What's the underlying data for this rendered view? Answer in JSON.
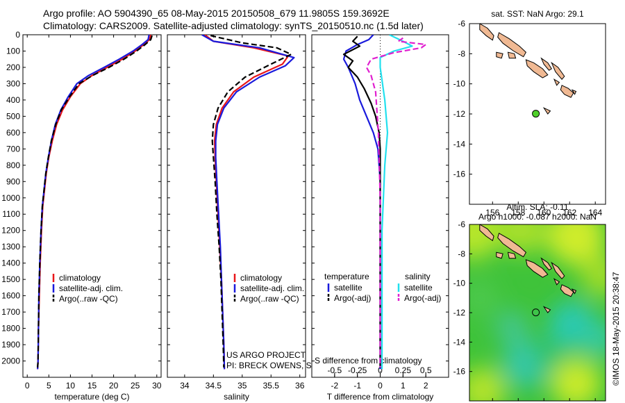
{
  "header": {
    "line1": "Argo profile: AO 5904390_65 08-May-2015 20150508_679 11.9805S 159.3692E",
    "line2": "Climatology: CARS2009. Satellite-adjusted climatology: synTS_20150510.nc (1.5d later)"
  },
  "stamp": "©IMOS 18-May-2015 20:38:47",
  "colors": {
    "climatology": "#e8161a",
    "satellite": "#1a1adc",
    "argo": "#000000",
    "sal_satellite": "#22e0ee",
    "sal_argo": "#e020d0",
    "float_marker": "#4fd02a"
  },
  "chart_data": [
    {
      "id": "temperature",
      "type": "line",
      "xlabel": "temperature (deg C)",
      "ylim": [
        2100,
        0
      ],
      "xlim": [
        -1,
        31
      ],
      "xticks": [
        0,
        5,
        10,
        15,
        20,
        25,
        30
      ],
      "yticks": [
        0,
        100,
        200,
        300,
        400,
        500,
        600,
        700,
        800,
        900,
        1000,
        1100,
        1200,
        1300,
        1400,
        1500,
        1600,
        1700,
        1800,
        1900,
        2000
      ],
      "legend": [
        "climatology",
        "satellite-adj. clim.",
        "Argo(..raw -QC)"
      ],
      "series": [
        {
          "name": "climatology",
          "color": "#e8161a",
          "points": [
            [
              28.6,
              0
            ],
            [
              28.3,
              30
            ],
            [
              27.0,
              60
            ],
            [
              25.0,
              100
            ],
            [
              22.0,
              150
            ],
            [
              18.5,
              200
            ],
            [
              15.0,
              250
            ],
            [
              12.3,
              300
            ],
            [
              10.0,
              380
            ],
            [
              8.2,
              460
            ],
            [
              6.8,
              550
            ],
            [
              5.8,
              650
            ],
            [
              5.0,
              750
            ],
            [
              4.4,
              850
            ],
            [
              4.0,
              950
            ],
            [
              3.6,
              1050
            ],
            [
              3.3,
              1200
            ],
            [
              3.0,
              1400
            ],
            [
              2.8,
              1600
            ],
            [
              2.6,
              1800
            ],
            [
              2.5,
              2000
            ],
            [
              2.4,
              2050
            ]
          ]
        },
        {
          "name": "satellite-adj. clim.",
          "color": "#1a1adc",
          "points": [
            [
              28.2,
              0
            ],
            [
              28.0,
              30
            ],
            [
              26.6,
              60
            ],
            [
              24.5,
              100
            ],
            [
              21.3,
              150
            ],
            [
              17.8,
              200
            ],
            [
              14.2,
              250
            ],
            [
              11.5,
              300
            ],
            [
              9.5,
              380
            ],
            [
              7.8,
              460
            ],
            [
              6.5,
              550
            ],
            [
              5.6,
              650
            ],
            [
              4.9,
              750
            ],
            [
              4.3,
              850
            ],
            [
              3.9,
              950
            ],
            [
              3.5,
              1050
            ],
            [
              3.2,
              1200
            ],
            [
              2.9,
              1400
            ],
            [
              2.7,
              1600
            ],
            [
              2.6,
              1800
            ],
            [
              2.5,
              2000
            ],
            [
              2.4,
              2050
            ]
          ]
        },
        {
          "name": "Argo(..raw -QC)",
          "color": "#000000",
          "dashed": true,
          "points": [
            [
              28.9,
              5
            ],
            [
              28.6,
              30
            ],
            [
              27.3,
              60
            ],
            [
              25.3,
              100
            ],
            [
              22.4,
              150
            ],
            [
              18.9,
              200
            ],
            [
              15.1,
              250
            ],
            [
              12.0,
              300
            ],
            [
              9.8,
              380
            ],
            [
              7.9,
              460
            ],
            [
              6.6,
              550
            ],
            [
              5.6,
              650
            ],
            [
              4.9,
              750
            ],
            [
              4.3,
              850
            ],
            [
              3.9,
              950
            ],
            [
              3.5,
              1050
            ],
            [
              3.2,
              1200
            ],
            [
              2.9,
              1400
            ],
            [
              2.7,
              1600
            ],
            [
              2.6,
              1800
            ],
            [
              2.5,
              2000
            ],
            [
              2.4,
              2040
            ]
          ]
        }
      ]
    },
    {
      "id": "salinity",
      "type": "line",
      "xlabel": "salinity",
      "ylim": [
        2100,
        0
      ],
      "xlim": [
        33.7,
        36.1
      ],
      "xticks": [
        34,
        34.5,
        35,
        35.5,
        36
      ],
      "xticklabels": [
        "34",
        "34.5",
        "35",
        "35.5",
        "36"
      ],
      "legend": [
        "climatology",
        "satellite-adj. clim.",
        "Argo(..raw -QC)"
      ],
      "annotations": [
        "US ARGO PROJECT",
        "PI: BRECK OWENS, STEVE JAYNE, P.E. ROBBINS"
      ],
      "series": [
        {
          "name": "climatology",
          "color": "#e8161a",
          "points": [
            [
              34.35,
              0
            ],
            [
              34.5,
              40
            ],
            [
              35.2,
              80
            ],
            [
              35.8,
              130
            ],
            [
              35.7,
              180
            ],
            [
              35.2,
              260
            ],
            [
              34.85,
              350
            ],
            [
              34.65,
              450
            ],
            [
              34.55,
              550
            ],
            [
              34.52,
              650
            ],
            [
              34.53,
              750
            ],
            [
              34.55,
              900
            ],
            [
              34.58,
              1100
            ],
            [
              34.61,
              1300
            ],
            [
              34.64,
              1500
            ],
            [
              34.66,
              1700
            ],
            [
              34.68,
              1900
            ],
            [
              34.69,
              2050
            ]
          ]
        },
        {
          "name": "satellite-adj. clim.",
          "color": "#1a1adc",
          "points": [
            [
              34.3,
              0
            ],
            [
              34.5,
              40
            ],
            [
              35.3,
              80
            ],
            [
              35.9,
              140
            ],
            [
              35.75,
              190
            ],
            [
              35.3,
              260
            ],
            [
              34.9,
              350
            ],
            [
              34.68,
              450
            ],
            [
              34.57,
              550
            ],
            [
              34.54,
              650
            ],
            [
              34.54,
              750
            ],
            [
              34.56,
              900
            ],
            [
              34.59,
              1100
            ],
            [
              34.62,
              1300
            ],
            [
              34.64,
              1500
            ],
            [
              34.66,
              1700
            ],
            [
              34.68,
              1900
            ],
            [
              34.69,
              2050
            ]
          ]
        },
        {
          "name": "Argo(..raw -QC)",
          "color": "#000000",
          "dashed": true,
          "points": [
            [
              34.45,
              5
            ],
            [
              35.0,
              50
            ],
            [
              35.6,
              80
            ],
            [
              35.85,
              120
            ],
            [
              35.5,
              180
            ],
            [
              35.05,
              260
            ],
            [
              34.75,
              350
            ],
            [
              34.58,
              450
            ],
            [
              34.5,
              550
            ],
            [
              34.48,
              650
            ],
            [
              34.5,
              750
            ],
            [
              34.53,
              900
            ],
            [
              34.56,
              1100
            ],
            [
              34.6,
              1300
            ],
            [
              34.63,
              1500
            ],
            [
              34.65,
              1700
            ],
            [
              34.67,
              1900
            ],
            [
              34.68,
              2040
            ]
          ]
        }
      ]
    },
    {
      "id": "difference",
      "type": "line",
      "xlabel": "T difference from climatology",
      "top_axis_label": "S difference from climatology",
      "ylim": [
        2100,
        0
      ],
      "xlim": [
        -3,
        3
      ],
      "xticks": [
        -2,
        -1,
        0,
        1,
        2
      ],
      "s_ticks": [
        -0.5,
        -0.25,
        0,
        0.25,
        0.5
      ],
      "s_ticklabels": [
        "-0.5",
        "-0.25",
        "0",
        "0.25",
        "0.5"
      ],
      "legend_titles": [
        "temperature",
        "salinity"
      ],
      "legend_left": [
        "satellite",
        "Argo(-adj)"
      ],
      "legend_right": [
        "satellite",
        "Argo(-adj)"
      ],
      "series": [
        {
          "name": "T satellite",
          "color": "#1a1adc",
          "points": [
            [
              -0.3,
              0
            ],
            [
              -0.5,
              30
            ],
            [
              -1.0,
              60
            ],
            [
              -1.5,
              100
            ],
            [
              -1.6,
              150
            ],
            [
              -1.4,
              200
            ],
            [
              -1.1,
              300
            ],
            [
              -0.9,
              400
            ],
            [
              -0.6,
              500
            ],
            [
              -0.3,
              600
            ],
            [
              -0.1,
              700
            ],
            [
              0,
              900
            ],
            [
              0,
              1500
            ],
            [
              0,
              2050
            ]
          ]
        },
        {
          "name": "T Argo(-adj)",
          "color": "#000000",
          "points": [
            [
              -1.0,
              10
            ],
            [
              -1.2,
              40
            ],
            [
              -0.9,
              70
            ],
            [
              -1.6,
              120
            ],
            [
              -1.2,
              160
            ],
            [
              -1.4,
              200
            ],
            [
              -1.0,
              260
            ],
            [
              -0.7,
              330
            ],
            [
              -0.4,
              420
            ],
            [
              -0.2,
              500
            ],
            [
              -0.05,
              600
            ],
            [
              0,
              700
            ],
            [
              0,
              1000
            ],
            [
              0,
              1500
            ],
            [
              0,
              2040
            ]
          ]
        },
        {
          "name": "S satellite",
          "color": "#22e0ee",
          "points": [
            [
              0.1,
              0
            ],
            [
              0.25,
              40
            ],
            [
              0.35,
              70
            ],
            [
              0.15,
              100
            ],
            [
              0.0,
              140
            ],
            [
              0.0,
              200
            ],
            [
              0.05,
              400
            ],
            [
              0.08,
              600
            ],
            [
              0.05,
              800
            ],
            [
              0.02,
              1200
            ],
            [
              0.02,
              1700
            ],
            [
              0.02,
              2050
            ]
          ]
        },
        {
          "name": "S Argo(-adj)",
          "color": "#e020d0",
          "dashed": true,
          "points": [
            [
              0.25,
              20
            ],
            [
              0.2,
              40
            ],
            [
              0.5,
              60
            ],
            [
              0.45,
              80
            ],
            [
              0.15,
              110
            ],
            [
              -0.1,
              150
            ],
            [
              -0.15,
              200
            ],
            [
              -0.1,
              250
            ],
            [
              -0.05,
              350
            ],
            [
              -0.02,
              600
            ],
            [
              0,
              1000
            ],
            [
              0,
              1500
            ],
            [
              0,
              2040
            ]
          ]
        }
      ]
    },
    {
      "id": "map-sst",
      "type": "scatter",
      "title": "sat. SST: NaN Argo: 29.1",
      "xlim": [
        154.2,
        164.8
      ],
      "ylim": [
        -18,
        -6
      ],
      "xticks": [
        156,
        158,
        160,
        162,
        164
      ],
      "yticks": [
        -6,
        -8,
        -10,
        -12,
        -14,
        -16
      ],
      "points": [
        {
          "lon": 159.37,
          "lat": -11.98
        }
      ]
    },
    {
      "id": "map-sla",
      "type": "heatmap",
      "title": [
        "Altim. SLA: -0.11",
        "Argo h1000: -0.087 h2000: NaN"
      ],
      "xlim": [
        154.2,
        164.8
      ],
      "ylim": [
        -18,
        -6
      ],
      "xticks": [
        156,
        158,
        160,
        162,
        164
      ],
      "yticks": [
        -6,
        -8,
        -10,
        -12,
        -14,
        -16
      ],
      "points": [
        {
          "lon": 159.37,
          "lat": -11.98
        }
      ]
    }
  ]
}
